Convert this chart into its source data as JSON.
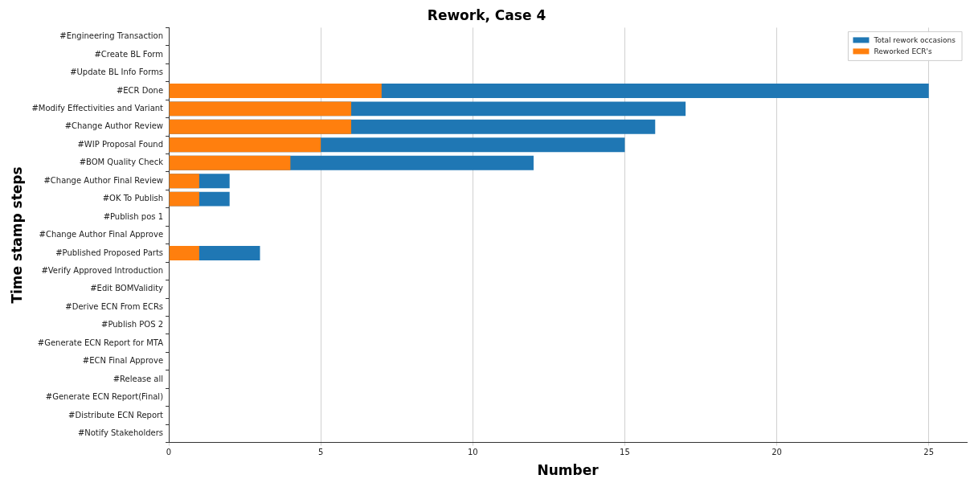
{
  "chart_data": {
    "type": "bar",
    "orientation": "horizontal",
    "title": "Rework, Case 4",
    "xlabel": "Number",
    "ylabel": "Time stamp steps",
    "categories": [
      "#Engineering Transaction",
      "#Create BL Form",
      "#Update BL Info Forms",
      "#ECR Done",
      "#Modify Effectivities and Variant",
      "#Change Author Review",
      "#WIP Proposal Found",
      "#BOM Quality Check",
      "#Change Author Final Review",
      "#OK To Publish",
      "#Publish pos 1",
      "#Change Author Final Approve",
      "#Published Proposed Parts",
      "#Verify Approved Introduction",
      "#Edit BOMValidity",
      "#Derive ECN From ECRs",
      "#Publish POS 2",
      "#Generate ECN Report for MTA",
      "#ECN Final Approve",
      "#Release all",
      "#Generate ECN Report(Final)",
      "#Distribute ECN Report",
      "#Notify Stakeholders"
    ],
    "series": [
      {
        "name": "Total rework occasions",
        "color": "#1f77b4",
        "values": [
          0,
          0,
          0,
          25,
          17,
          16,
          15,
          12,
          2,
          2,
          0,
          0,
          3,
          0,
          0,
          0,
          0,
          0,
          0,
          0,
          0,
          0,
          0
        ]
      },
      {
        "name": "Reworked ECR's",
        "color": "#ff7f0e",
        "values": [
          0,
          0,
          0,
          7,
          6,
          6,
          5,
          4,
          1,
          1,
          0,
          0,
          1,
          0,
          0,
          0,
          0,
          0,
          0,
          0,
          0,
          0,
          0
        ]
      }
    ],
    "xlim": [
      0,
      26.25
    ],
    "xticks": [
      0,
      5,
      10,
      15,
      20,
      25
    ],
    "grid": "x",
    "legend": "top right"
  }
}
